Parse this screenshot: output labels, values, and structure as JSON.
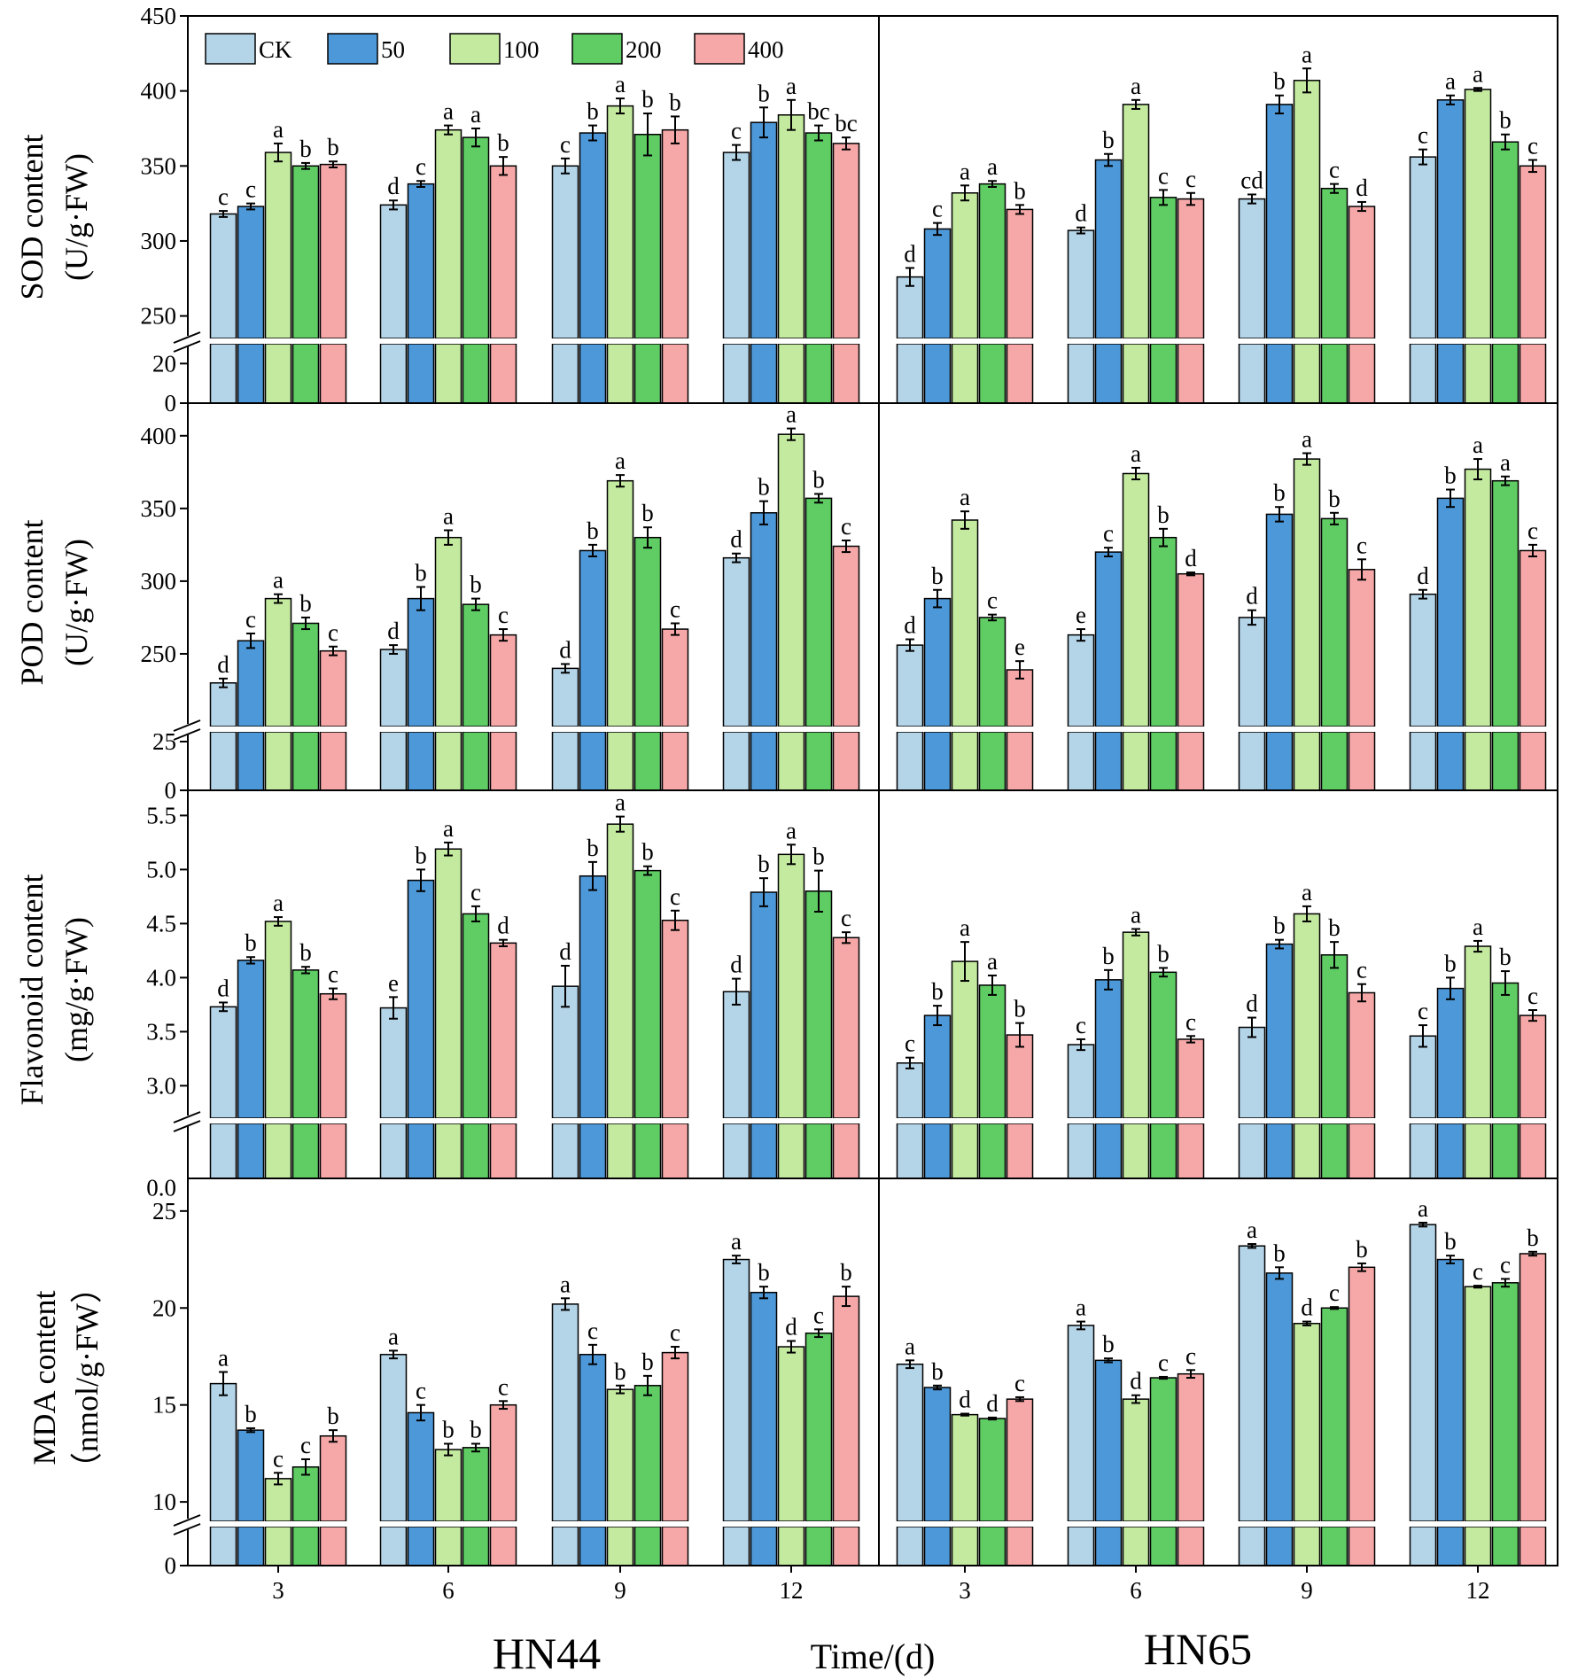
{
  "chart_data": {
    "type": "bar",
    "legend": [
      "CK",
      "50",
      "100",
      "200",
      "400"
    ],
    "colors": [
      "#b4d4e8",
      "#4d98d8",
      "#c4eaa0",
      "#5fcc64",
      "#f6a8a8"
    ],
    "groups": [
      "HN44",
      "HN65"
    ],
    "categories": [
      "3",
      "6",
      "9",
      "12"
    ],
    "xlabel": "Time/(d)",
    "panels": [
      {
        "name": "SOD",
        "ylabel_line1": "SOD content",
        "ylabel_line2": "(U/g·FW)",
        "upper_range": [
          235,
          450
        ],
        "upper_ticks": [
          "250",
          "300",
          "350",
          "400",
          "450"
        ],
        "lower_range": [
          0,
          30
        ],
        "lower_ticks": [
          "0",
          "20"
        ],
        "data": {
          "HN44": {
            "values": [
              [
                318,
                323,
                359,
                350,
                351
              ],
              [
                324,
                338,
                374,
                369,
                350
              ],
              [
                350,
                372,
                390,
                371,
                374
              ],
              [
                359,
                379,
                384,
                372,
                365
              ]
            ],
            "errors": [
              [
                2,
                2,
                6,
                2,
                2
              ],
              [
                3,
                2,
                3,
                6,
                6
              ],
              [
                5,
                5,
                5,
                14,
                9
              ],
              [
                5,
                10,
                10,
                5,
                4
              ]
            ],
            "letters": [
              [
                "c",
                "c",
                "a",
                "b",
                "b"
              ],
              [
                "d",
                "c",
                "a",
                "a",
                "b"
              ],
              [
                "c",
                "b",
                "a",
                "b",
                "b"
              ],
              [
                "c",
                "b",
                "a",
                "bc",
                "bc"
              ]
            ]
          },
          "HN65": {
            "values": [
              [
                276,
                308,
                332,
                338,
                321
              ],
              [
                307,
                354,
                391,
                329,
                328
              ],
              [
                328,
                391,
                407,
                335,
                323
              ],
              [
                356,
                394,
                401,
                366,
                350
              ]
            ],
            "errors": [
              [
                6,
                4,
                5,
                2,
                3
              ],
              [
                2,
                4,
                3,
                5,
                4
              ],
              [
                3,
                6,
                8,
                3,
                3
              ],
              [
                5,
                3,
                1,
                5,
                4
              ]
            ],
            "letters": [
              [
                "d",
                "c",
                "a",
                "a",
                "b"
              ],
              [
                "d",
                "b",
                "a",
                "c",
                "c"
              ],
              [
                "cd",
                "b",
                "a",
                "c",
                "d"
              ],
              [
                "c",
                "a",
                "a",
                "b",
                "c"
              ]
            ]
          }
        }
      },
      {
        "name": "POD",
        "ylabel_line1": "POD content",
        "ylabel_line2": "(U/g·FW)",
        "upper_range": [
          200,
          420
        ],
        "upper_ticks": [
          "250",
          "300",
          "350",
          "400"
        ],
        "lower_range": [
          0,
          30
        ],
        "lower_ticks": [
          "0",
          "25"
        ],
        "data": {
          "HN44": {
            "values": [
              [
                230,
                259,
                288,
                271,
                252
              ],
              [
                253,
                288,
                330,
                284,
                263
              ],
              [
                240,
                321,
                369,
                330,
                267
              ],
              [
                316,
                347,
                401,
                357,
                324
              ]
            ],
            "errors": [
              [
                3,
                5,
                3,
                4,
                3
              ],
              [
                3,
                8,
                5,
                4,
                4
              ],
              [
                3,
                4,
                4,
                7,
                4
              ],
              [
                3,
                8,
                4,
                3,
                4
              ]
            ],
            "letters": [
              [
                "d",
                "c",
                "a",
                "b",
                "c"
              ],
              [
                "d",
                "b",
                "a",
                "b",
                "c"
              ],
              [
                "d",
                "b",
                "a",
                "b",
                "c"
              ],
              [
                "d",
                "b",
                "a",
                "b",
                "c"
              ]
            ]
          },
          "HN65": {
            "values": [
              [
                256,
                288,
                342,
                275,
                239
              ],
              [
                263,
                320,
                374,
                330,
                305
              ],
              [
                275,
                346,
                384,
                343,
                308
              ],
              [
                291,
                357,
                377,
                369,
                321
              ]
            ],
            "errors": [
              [
                4,
                6,
                6,
                2,
                6
              ],
              [
                4,
                3,
                4,
                6,
                1
              ],
              [
                5,
                5,
                4,
                4,
                7
              ],
              [
                3,
                6,
                7,
                3,
                4
              ]
            ],
            "letters": [
              [
                "d",
                "b",
                "a",
                "c",
                "e"
              ],
              [
                "e",
                "c",
                "a",
                "b",
                "d"
              ],
              [
                "d",
                "b",
                "a",
                "b",
                "c"
              ],
              [
                "d",
                "b",
                "a",
                "a",
                "c"
              ]
            ]
          }
        }
      },
      {
        "name": "Flavonoid",
        "ylabel_line1": "Flavonoid content",
        "ylabel_line2": "(mg/g·FW)",
        "upper_range": [
          2.7,
          5.7
        ],
        "upper_ticks": [
          "3.0",
          "3.5",
          "4.0",
          "4.5",
          "5.0",
          "5.5"
        ],
        "lower_range": [
          0,
          1
        ],
        "lower_ticks": [],
        "data": {
          "HN44": {
            "values": [
              [
                3.73,
                4.16,
                4.52,
                4.07,
                3.85
              ],
              [
                3.72,
                4.9,
                5.19,
                4.59,
                4.32
              ],
              [
                3.92,
                4.94,
                5.42,
                4.99,
                4.53
              ],
              [
                3.87,
                4.79,
                5.14,
                4.8,
                4.37
              ]
            ],
            "errors": [
              [
                0.04,
                0.03,
                0.04,
                0.03,
                0.05
              ],
              [
                0.1,
                0.1,
                0.06,
                0.07,
                0.03
              ],
              [
                0.19,
                0.13,
                0.07,
                0.04,
                0.09
              ],
              [
                0.12,
                0.13,
                0.09,
                0.19,
                0.05
              ]
            ],
            "letters": [
              [
                "d",
                "b",
                "a",
                "b",
                "c"
              ],
              [
                "e",
                "b",
                "a",
                "c",
                "d"
              ],
              [
                "d",
                "b",
                "a",
                "b",
                "c"
              ],
              [
                "d",
                "b",
                "a",
                "b",
                "c"
              ]
            ]
          },
          "HN65": {
            "values": [
              [
                3.21,
                3.65,
                4.15,
                3.93,
                3.47
              ],
              [
                3.38,
                3.98,
                4.42,
                4.05,
                3.43
              ],
              [
                3.54,
                4.31,
                4.59,
                4.21,
                3.86
              ],
              [
                3.46,
                3.9,
                4.29,
                3.95,
                3.65
              ]
            ],
            "errors": [
              [
                0.05,
                0.09,
                0.18,
                0.09,
                0.11
              ],
              [
                0.05,
                0.09,
                0.03,
                0.04,
                0.03
              ],
              [
                0.09,
                0.04,
                0.07,
                0.12,
                0.08
              ],
              [
                0.1,
                0.1,
                0.05,
                0.11,
                0.05
              ]
            ],
            "letters": [
              [
                "c",
                "b",
                "a",
                "a",
                "b"
              ],
              [
                "c",
                "b",
                "a",
                "b",
                "c"
              ],
              [
                "d",
                "b",
                "a",
                "b",
                "c"
              ],
              [
                "c",
                "b",
                "a",
                "b",
                "c"
              ]
            ]
          }
        }
      },
      {
        "name": "MDA",
        "ylabel_line1": "MDA content",
        "ylabel_line2": "（nmol/g·FW）",
        "upper_range": [
          9,
          26.5
        ],
        "upper_ticks": [
          "10",
          "15",
          "20",
          "25"
        ],
        "upper_ghost_tick": "0.0",
        "lower_range": [
          0,
          1
        ],
        "lower_ticks": [
          "0"
        ],
        "data": {
          "HN44": {
            "values": [
              [
                16.1,
                13.7,
                11.2,
                11.8,
                13.4
              ],
              [
                17.6,
                14.6,
                12.7,
                12.8,
                15.0
              ],
              [
                20.2,
                17.6,
                15.8,
                16.0,
                17.7
              ],
              [
                22.5,
                20.8,
                18.0,
                18.7,
                20.6
              ]
            ],
            "errors": [
              [
                0.6,
                0.1,
                0.3,
                0.4,
                0.3
              ],
              [
                0.2,
                0.4,
                0.3,
                0.2,
                0.2
              ],
              [
                0.3,
                0.5,
                0.2,
                0.5,
                0.3
              ],
              [
                0.2,
                0.3,
                0.3,
                0.2,
                0.5
              ]
            ],
            "letters": [
              [
                "a",
                "b",
                "c",
                "c",
                "b"
              ],
              [
                "a",
                "c",
                "b",
                "b",
                "c"
              ],
              [
                "a",
                "c",
                "b",
                "b",
                "c"
              ],
              [
                "a",
                "b",
                "d",
                "c",
                "b"
              ]
            ]
          },
          "HN65": {
            "values": [
              [
                17.1,
                15.9,
                14.5,
                14.3,
                15.3
              ],
              [
                19.1,
                17.3,
                15.3,
                16.4,
                16.6
              ],
              [
                23.2,
                21.8,
                19.2,
                20.0,
                22.1
              ],
              [
                24.3,
                22.5,
                21.1,
                21.3,
                22.8
              ]
            ],
            "errors": [
              [
                0.2,
                0.1,
                0.05,
                0.05,
                0.1
              ],
              [
                0.2,
                0.1,
                0.2,
                0.05,
                0.2
              ],
              [
                0.1,
                0.3,
                0.1,
                0.05,
                0.2
              ],
              [
                0.1,
                0.2,
                0.05,
                0.2,
                0.1
              ]
            ],
            "letters": [
              [
                "a",
                "b",
                "d",
                "d",
                "c"
              ],
              [
                "a",
                "b",
                "d",
                "c",
                "c"
              ],
              [
                "a",
                "b",
                "d",
                "c",
                "b"
              ],
              [
                "a",
                "b",
                "c",
                "c",
                "b"
              ]
            ]
          }
        }
      }
    ]
  }
}
